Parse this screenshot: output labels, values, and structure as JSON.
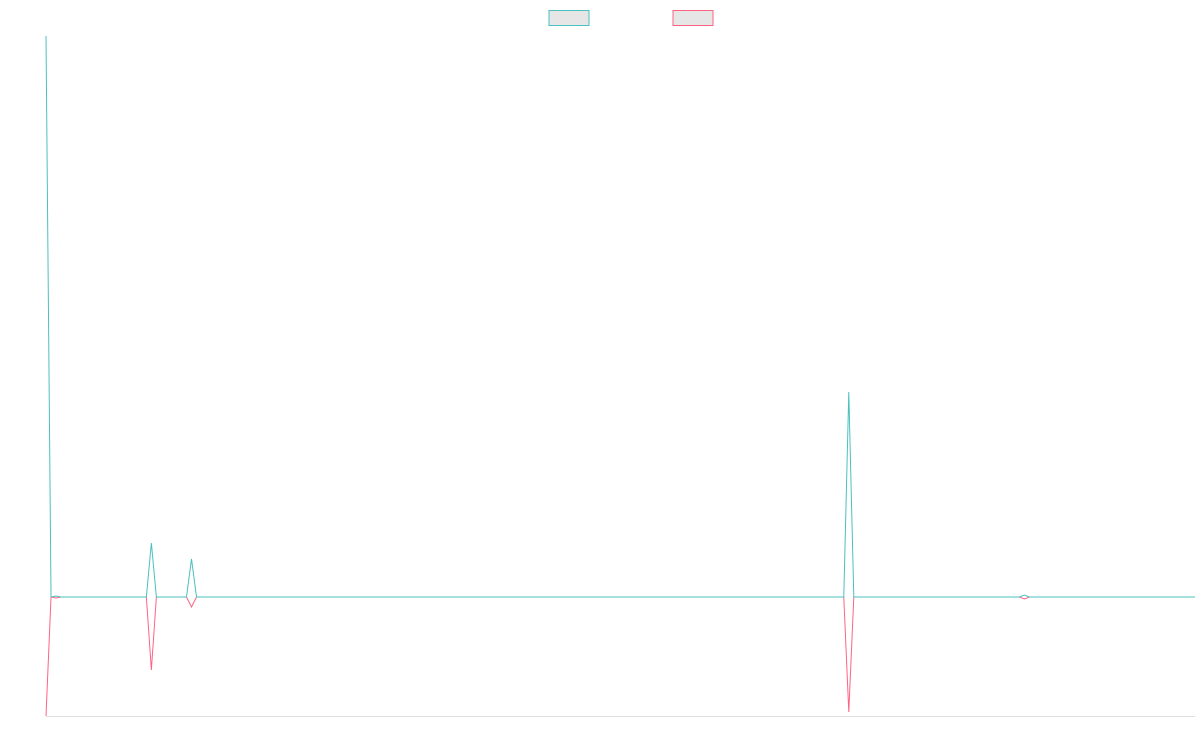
{
  "chart_data": {
    "type": "line",
    "x": [
      0,
      1,
      2,
      3,
      20,
      21,
      22,
      28,
      29,
      30,
      159,
      160,
      161,
      194,
      195,
      196,
      229
    ],
    "xlim": [
      0,
      229
    ],
    "ylim": [
      -119,
      561
    ],
    "legend": "top",
    "series": [
      {
        "color": "#ff6384",
        "values": [
          -119,
          0,
          -1,
          0,
          0,
          -73,
          0,
          0,
          -10,
          0,
          0,
          -115,
          0,
          0,
          -2,
          0,
          0
        ]
      },
      {
        "color": "#4bc0c0",
        "values": [
          561,
          0,
          1,
          0,
          0,
          54,
          0,
          0,
          38,
          0,
          0,
          205,
          0,
          0,
          2,
          0,
          0
        ]
      }
    ]
  }
}
